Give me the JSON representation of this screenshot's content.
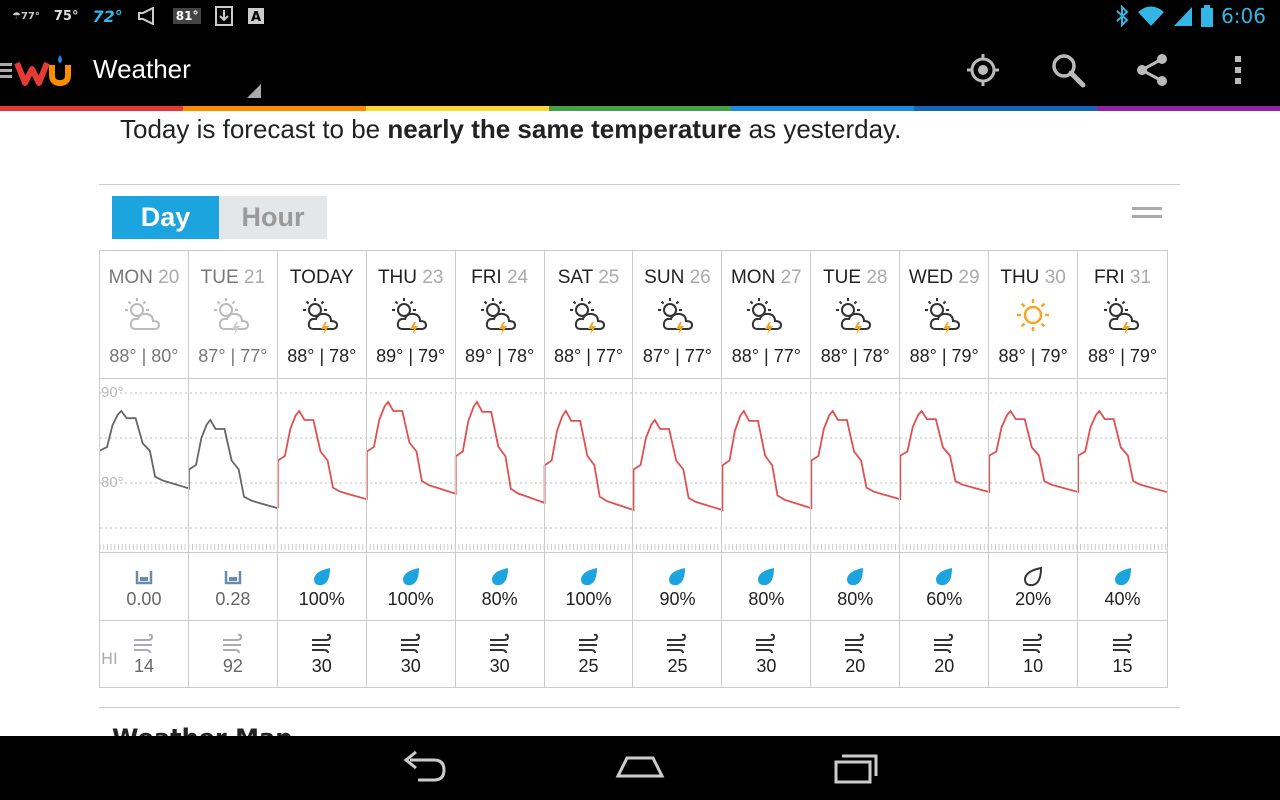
{
  "status_bar": {
    "weather_temp_small": "77°",
    "temp1": "75°",
    "temp2": "72°",
    "temp_badge": "81°",
    "time": "6:06",
    "icons": [
      "weather-notification-icon",
      "megaphone-icon",
      "download-icon",
      "text-a-icon",
      "bluetooth-icon",
      "wifi-icon",
      "signal-icon",
      "battery-icon"
    ]
  },
  "action_bar": {
    "title": "Weather",
    "actions": [
      "locate-icon",
      "search-icon",
      "share-icon",
      "overflow-menu-icon"
    ]
  },
  "color_strip": [
    "#e53935",
    "#fb8c00",
    "#fdd835",
    "#43a047",
    "#1e88e5",
    "#1565c0",
    "#8e24aa"
  ],
  "summary": {
    "prefix": "Today is forecast to be ",
    "bold": "nearly the same temperature",
    "suffix": " as yesterday."
  },
  "tabs": {
    "day": "Day",
    "hour": "Hour"
  },
  "forecast": {
    "axis_labels": {
      "high": "90°",
      "low": "80°"
    },
    "wind_row_label": "HI",
    "days": [
      {
        "name": "MON",
        "num": "20",
        "temps": "88° | 80°",
        "precip": "0.00",
        "wind": "14",
        "past": true,
        "cond": "partly-cloudy"
      },
      {
        "name": "TUE",
        "num": "21",
        "temps": "87° | 77°",
        "precip": "0.28",
        "wind": "92",
        "past": true,
        "cond": "thunderstorm"
      },
      {
        "name": "TODAY",
        "num": "",
        "temps": "88° | 78°",
        "precip": "100%",
        "wind": "30",
        "past": false,
        "cond": "thunderstorm"
      },
      {
        "name": "THU",
        "num": "23",
        "temps": "89° | 79°",
        "precip": "100%",
        "wind": "30",
        "past": false,
        "cond": "thunderstorm"
      },
      {
        "name": "FRI",
        "num": "24",
        "temps": "89° | 78°",
        "precip": "80%",
        "wind": "30",
        "past": false,
        "cond": "thunderstorm"
      },
      {
        "name": "SAT",
        "num": "25",
        "temps": "88° | 77°",
        "precip": "100%",
        "wind": "25",
        "past": false,
        "cond": "thunderstorm"
      },
      {
        "name": "SUN",
        "num": "26",
        "temps": "87° | 77°",
        "precip": "90%",
        "wind": "25",
        "past": false,
        "cond": "thunderstorm"
      },
      {
        "name": "MON",
        "num": "27",
        "temps": "88° | 77°",
        "precip": "80%",
        "wind": "30",
        "past": false,
        "cond": "thunderstorm"
      },
      {
        "name": "TUE",
        "num": "28",
        "temps": "88° | 78°",
        "precip": "80%",
        "wind": "20",
        "past": false,
        "cond": "thunderstorm"
      },
      {
        "name": "WED",
        "num": "29",
        "temps": "88° | 79°",
        "precip": "60%",
        "wind": "20",
        "past": false,
        "cond": "thunderstorm"
      },
      {
        "name": "THU",
        "num": "30",
        "temps": "88° | 79°",
        "precip": "20%",
        "wind": "10",
        "past": false,
        "cond": "sunny"
      },
      {
        "name": "FRI",
        "num": "31",
        "temps": "88° | 79°",
        "precip": "40%",
        "wind": "15",
        "past": false,
        "cond": "thunderstorm"
      }
    ]
  },
  "next_section_title": "Weather Map",
  "nav_bar": [
    "back-icon",
    "home-icon",
    "recent-apps-icon"
  ]
}
